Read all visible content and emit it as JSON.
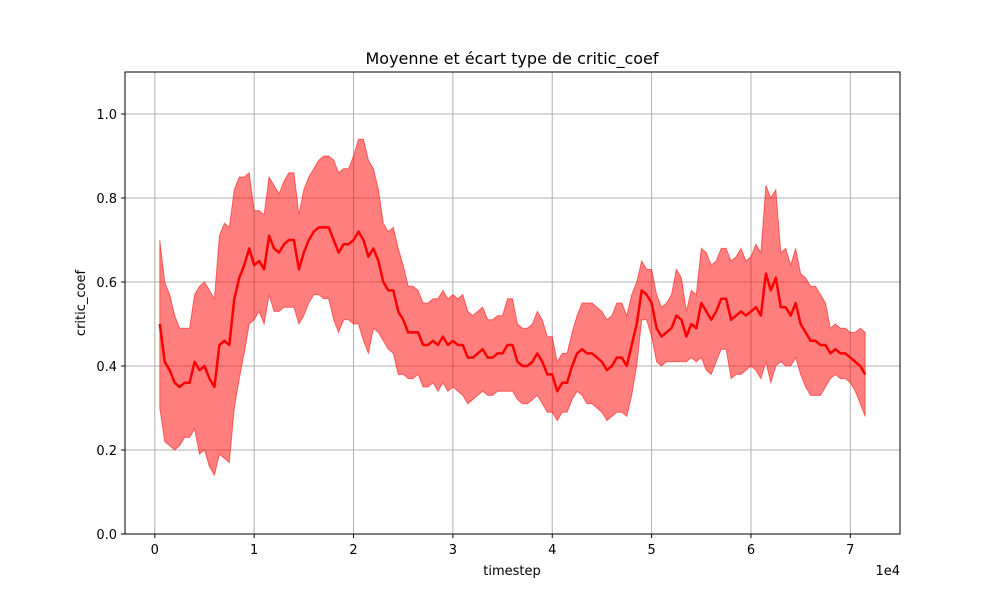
{
  "chart_data": {
    "type": "area",
    "title": "Moyenne et écart type de critic_coef",
    "xlabel": "timestep",
    "ylabel": "critic_coef",
    "x_offset_label": "1e4",
    "xlim": [
      -3000,
      75000
    ],
    "ylim": [
      0,
      1.1
    ],
    "x_ticks": [
      0,
      10000,
      20000,
      30000,
      40000,
      50000,
      60000,
      70000
    ],
    "x_tick_labels": [
      "0",
      "1",
      "2",
      "3",
      "4",
      "5",
      "6",
      "7"
    ],
    "y_ticks": [
      0,
      0.2,
      0.4,
      0.6,
      0.8,
      1.0
    ],
    "y_tick_labels": [
      "0.0",
      "0.2",
      "0.4",
      "0.6",
      "0.8",
      "1.0"
    ],
    "grid": true,
    "colors": {
      "mean_line": "#ff0000",
      "band_fill": "#ff0000",
      "grid": "#b0b0b0"
    },
    "series": [
      {
        "x": [
          500,
          1000,
          1500,
          2000,
          2500,
          3000,
          3500,
          4000,
          4500,
          5000,
          5500,
          6000,
          6500,
          7000,
          7500,
          8000,
          8500,
          9000,
          9500,
          10000,
          10500,
          11000,
          11500,
          12000,
          12500,
          13000,
          13500,
          14000,
          14500,
          15000,
          15500,
          16000,
          16500,
          17000,
          17500,
          18000,
          18500,
          19000,
          19500,
          20000,
          20500,
          21000,
          21500,
          22000,
          22500,
          23000,
          23500,
          24000,
          24500,
          25000,
          25500,
          26000,
          26500,
          27000,
          27500,
          28000,
          28500,
          29000,
          29500,
          30000,
          30500,
          31000,
          31500,
          32000,
          32500,
          33000,
          33500,
          34000,
          34500,
          35000,
          35500,
          36000,
          36500,
          37000,
          37500,
          38000,
          38500,
          39000,
          39500,
          40000,
          40500,
          41000,
          41500,
          42000,
          42500,
          43000,
          43500,
          44000,
          44500,
          45000,
          45500,
          46000,
          46500,
          47000,
          47500,
          48000,
          48500,
          49000,
          49500,
          50000,
          50500,
          51000,
          51500,
          52000,
          52500,
          53000,
          53500,
          54000,
          54500,
          55000,
          55500,
          56000,
          56500,
          57000,
          57500,
          58000,
          58500,
          59000,
          59500,
          60000,
          60500,
          61000,
          61500,
          62000,
          62500,
          63000,
          63500,
          64000,
          64500,
          65000,
          65500,
          66000,
          66500,
          67000,
          67500,
          68000,
          68500,
          69000,
          69500,
          70000,
          70500,
          71000,
          71500
        ],
        "mean": [
          0.5,
          0.41,
          0.39,
          0.36,
          0.35,
          0.36,
          0.36,
          0.41,
          0.39,
          0.4,
          0.37,
          0.35,
          0.45,
          0.46,
          0.45,
          0.56,
          0.61,
          0.64,
          0.68,
          0.64,
          0.65,
          0.63,
          0.71,
          0.68,
          0.67,
          0.69,
          0.7,
          0.7,
          0.63,
          0.67,
          0.7,
          0.72,
          0.73,
          0.73,
          0.73,
          0.7,
          0.67,
          0.69,
          0.69,
          0.7,
          0.72,
          0.7,
          0.66,
          0.68,
          0.65,
          0.6,
          0.58,
          0.58,
          0.53,
          0.51,
          0.48,
          0.48,
          0.48,
          0.45,
          0.45,
          0.46,
          0.45,
          0.47,
          0.45,
          0.46,
          0.45,
          0.45,
          0.42,
          0.42,
          0.43,
          0.44,
          0.42,
          0.42,
          0.43,
          0.43,
          0.45,
          0.45,
          0.41,
          0.4,
          0.4,
          0.41,
          0.43,
          0.41,
          0.38,
          0.38,
          0.34,
          0.36,
          0.36,
          0.4,
          0.43,
          0.44,
          0.43,
          0.43,
          0.42,
          0.41,
          0.39,
          0.4,
          0.42,
          0.42,
          0.4,
          0.45,
          0.5,
          0.58,
          0.57,
          0.55,
          0.49,
          0.47,
          0.48,
          0.49,
          0.52,
          0.51,
          0.47,
          0.5,
          0.49,
          0.55,
          0.53,
          0.51,
          0.53,
          0.56,
          0.56,
          0.51,
          0.52,
          0.53,
          0.52,
          0.53,
          0.54,
          0.52,
          0.62,
          0.58,
          0.61,
          0.54,
          0.54,
          0.52,
          0.55,
          0.5,
          0.48,
          0.46,
          0.46,
          0.45,
          0.45,
          0.43,
          0.44,
          0.43,
          0.43,
          0.42,
          0.41,
          0.4,
          0.38
        ],
        "std": [
          0.2,
          0.19,
          0.18,
          0.16,
          0.14,
          0.13,
          0.13,
          0.16,
          0.2,
          0.2,
          0.21,
          0.21,
          0.26,
          0.28,
          0.28,
          0.26,
          0.24,
          0.21,
          0.18,
          0.13,
          0.12,
          0.13,
          0.14,
          0.15,
          0.14,
          0.15,
          0.16,
          0.16,
          0.13,
          0.15,
          0.15,
          0.15,
          0.16,
          0.17,
          0.17,
          0.19,
          0.19,
          0.18,
          0.18,
          0.2,
          0.22,
          0.24,
          0.23,
          0.19,
          0.17,
          0.14,
          0.14,
          0.15,
          0.15,
          0.13,
          0.11,
          0.11,
          0.1,
          0.1,
          0.1,
          0.1,
          0.11,
          0.11,
          0.11,
          0.11,
          0.11,
          0.12,
          0.11,
          0.1,
          0.1,
          0.1,
          0.09,
          0.09,
          0.09,
          0.09,
          0.11,
          0.11,
          0.09,
          0.09,
          0.09,
          0.09,
          0.1,
          0.1,
          0.09,
          0.09,
          0.07,
          0.07,
          0.07,
          0.08,
          0.09,
          0.11,
          0.12,
          0.12,
          0.12,
          0.12,
          0.12,
          0.12,
          0.13,
          0.13,
          0.12,
          0.12,
          0.1,
          0.07,
          0.06,
          0.08,
          0.08,
          0.07,
          0.07,
          0.08,
          0.11,
          0.1,
          0.06,
          0.08,
          0.08,
          0.13,
          0.14,
          0.13,
          0.12,
          0.12,
          0.12,
          0.14,
          0.14,
          0.15,
          0.13,
          0.13,
          0.15,
          0.15,
          0.21,
          0.22,
          0.21,
          0.13,
          0.14,
          0.12,
          0.13,
          0.12,
          0.13,
          0.13,
          0.13,
          0.12,
          0.1,
          0.06,
          0.06,
          0.06,
          0.06,
          0.06,
          0.07,
          0.09,
          0.1
        ]
      }
    ]
  }
}
